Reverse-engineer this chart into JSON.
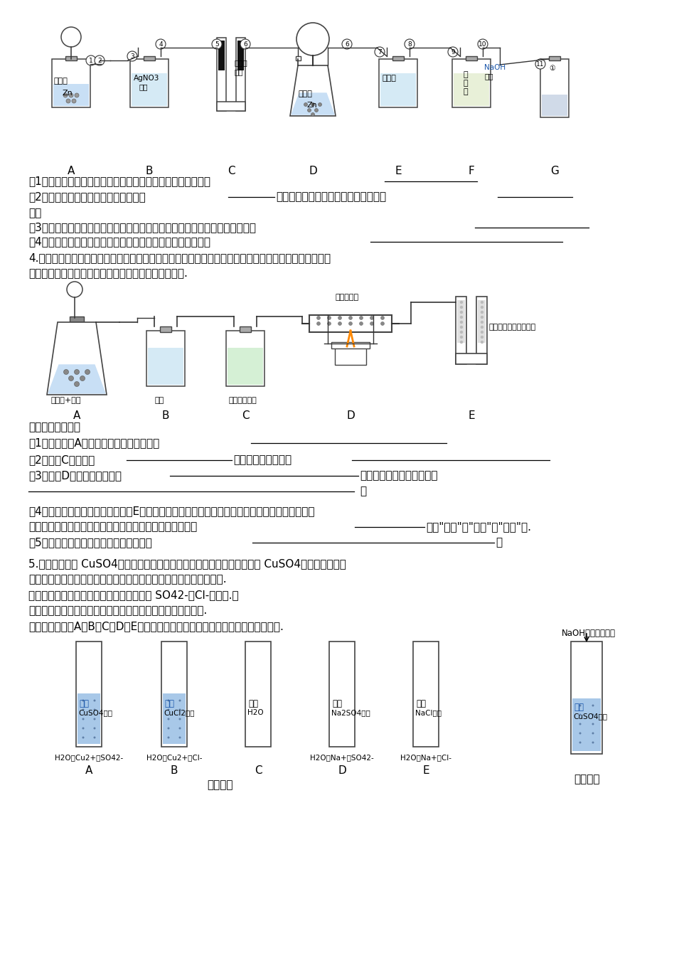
{
  "bg_color": "#ffffff",
  "text_color": "#000000",
  "blue_fill": "#a8c8e8",
  "tube_positions": [
    120,
    240,
    358,
    476,
    594
  ],
  "tube_colors_fill": [
    "#a8c8e8",
    "#a8c8e8",
    "#ffffff",
    "#ffffff",
    "#ffffff"
  ],
  "tube_color_labels": [
    "蓝色",
    "蓝色",
    "无色",
    "无色",
    "无色"
  ],
  "tube_liquid_labels": [
    "CuSO4溶液",
    "CuCl2溶液",
    "H2O",
    "Na2SO4溶液",
    "NaCl溶液"
  ],
  "tube_ion_labels": [
    "H2O、Cu2+、SO42-",
    "H2O、Cu2+、Cl-",
    "",
    "H2O、Na+、SO42-",
    "H2O、Na+、Cl-"
  ],
  "tube_letters": [
    "A",
    "B",
    "C",
    "D",
    "E"
  ],
  "fig1_caption": "（图一）",
  "fig2_caption": "（图二）",
  "fig2_naoh_label": "NaOH溶液（足量）",
  "fig2_color_label": "蓝色",
  "fig2_liquid_label": "CuSO4溶液"
}
